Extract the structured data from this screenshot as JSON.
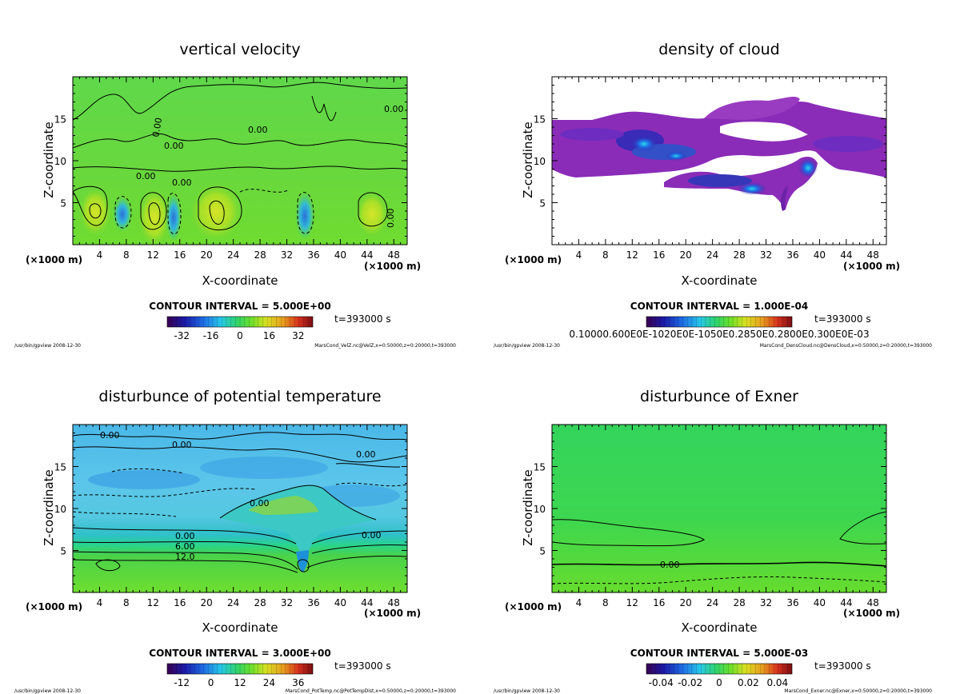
{
  "panels": [
    {
      "id": "vel",
      "title": "vertical velocity",
      "xlabel": "X-coordinate",
      "ylabel": "Z-coordinate",
      "x_unit": "(×1000 m)",
      "contour_interval": "CONTOUR INTERVAL = 5.000E+00",
      "time": "t=393000 s",
      "colorbar_ticks": [
        "-32",
        "-16",
        "0",
        "16",
        "32"
      ],
      "footer_left": "/usr/bin/gpview   2008-12-30",
      "footer_right": "MarsCond_VelZ.nc@VelZ,x=0:50000,z=0:20000,t=393000",
      "contour_labels": [
        "0.00",
        "0.00",
        "0.00",
        "0.00",
        "0.00",
        "0.00",
        "0.00"
      ]
    },
    {
      "id": "cloud",
      "title": "density of cloud",
      "xlabel": "X-coordinate",
      "ylabel": "Z-coordinate",
      "x_unit": "(×1000 m)",
      "contour_interval": "CONTOUR INTERVAL = 1.000E-04",
      "time": "t=393000 s",
      "colorbar_ticks": [
        "0.10000.600E0E-1020E0E-1050E0.2850E0.2800E0.300E0E-03"
      ],
      "footer_left": "/usr/bin/gpview   2008-12-30",
      "footer_right": "MarsCond_DensCloud.nc@DensCloud,x=0:50000,z=0:20000,t=393000",
      "contour_labels": []
    },
    {
      "id": "ptemp",
      "title": "disturbunce of potential temperature",
      "xlabel": "X-coordinate",
      "ylabel": "Z-coordinate",
      "x_unit": "(×1000 m)",
      "contour_interval": "CONTOUR INTERVAL = 3.000E+00",
      "time": "t=393000 s",
      "colorbar_ticks": [
        "-12",
        "0",
        "12",
        "24",
        "36"
      ],
      "footer_left": "/usr/bin/gpview   2008-12-30",
      "footer_right": "MarsCond_PotTemp.nc@PotTempDist,x=0:50000,z=0:20000,t=393000",
      "contour_labels": [
        "0.00",
        "0.00",
        "0.00",
        "0.00",
        "0.00",
        "0.00",
        "6.00",
        "12.0"
      ]
    },
    {
      "id": "exner",
      "title": "disturbunce of Exner",
      "xlabel": "X-coordinate",
      "ylabel": "Z-coordinate",
      "x_unit": "(×1000 m)",
      "contour_interval": "CONTOUR INTERVAL = 5.000E-03",
      "time": "t=393000 s",
      "colorbar_ticks": [
        "-0.04",
        "-0.02",
        "0",
        "0.02",
        "0.04"
      ],
      "footer_left": "/usr/bin/gpview   2008-12-30",
      "footer_right": "MarsCond_Exner.nc@Exner,x=0:50000,z=0:20000,t=393000",
      "contour_labels": [
        "0.00"
      ]
    }
  ],
  "chart_data": [
    {
      "type": "heatmap",
      "title": "vertical velocity",
      "xlabel": "X-coordinate (×1000 m)",
      "ylabel": "Z-coordinate",
      "xlim": [
        0,
        50
      ],
      "ylim": [
        0,
        20
      ],
      "xticks": [
        4,
        8,
        12,
        16,
        20,
        24,
        28,
        32,
        36,
        40,
        44,
        48
      ],
      "yticks": [
        5,
        10,
        15
      ],
      "colorbar_range": [
        -40,
        40
      ],
      "contour_interval": 5.0,
      "time_s": 393000
    },
    {
      "type": "heatmap",
      "title": "density of cloud",
      "xlabel": "X-coordinate (×1000 m)",
      "ylabel": "Z-coordinate",
      "xlim": [
        0,
        50
      ],
      "ylim": [
        0,
        20
      ],
      "xticks": [
        4,
        8,
        12,
        16,
        20,
        24,
        28,
        32,
        36,
        40,
        44,
        48
      ],
      "yticks": [
        5,
        10,
        15
      ],
      "contour_interval": 0.0001,
      "time_s": 393000
    },
    {
      "type": "heatmap",
      "title": "disturbunce of potential temperature",
      "xlabel": "X-coordinate (×1000 m)",
      "ylabel": "Z-coordinate",
      "xlim": [
        0,
        50
      ],
      "ylim": [
        0,
        20
      ],
      "xticks": [
        4,
        8,
        12,
        16,
        20,
        24,
        28,
        32,
        36,
        40,
        44,
        48
      ],
      "yticks": [
        5,
        10,
        15
      ],
      "colorbar_range": [
        -18,
        42
      ],
      "contour_interval": 3.0,
      "time_s": 393000
    },
    {
      "type": "heatmap",
      "title": "disturbunce of Exner",
      "xlabel": "X-coordinate (×1000 m)",
      "ylabel": "Z-coordinate",
      "xlim": [
        0,
        50
      ],
      "ylim": [
        0,
        20
      ],
      "xticks": [
        4,
        8,
        12,
        16,
        20,
        24,
        28,
        32,
        36,
        40,
        44,
        48
      ],
      "yticks": [
        5,
        10,
        15
      ],
      "colorbar_range": [
        -0.05,
        0.05
      ],
      "contour_interval": 0.005,
      "time_s": 393000
    }
  ]
}
